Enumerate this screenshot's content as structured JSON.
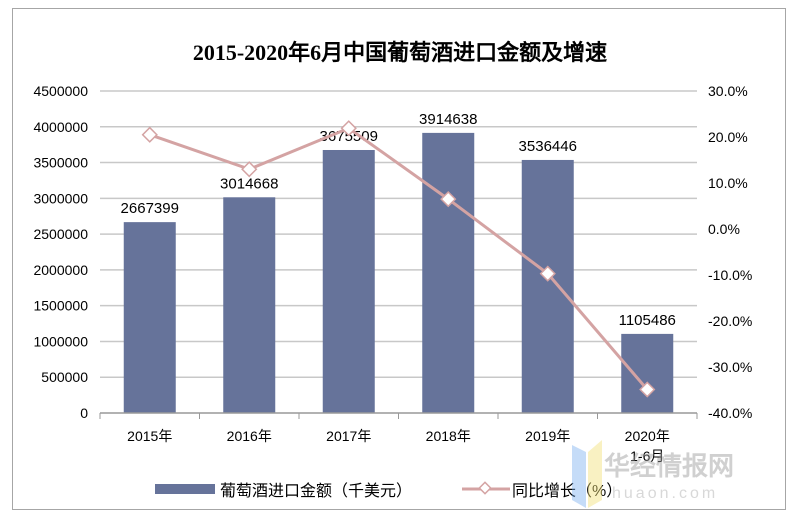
{
  "chart_data": {
    "type": "bar+line",
    "title": "2015-2020年6月中国葡萄酒进口金额及增速",
    "categories": [
      "2015年",
      "2016年",
      "2017年",
      "2018年",
      "2019年",
      "2020年\n1-6月"
    ],
    "category_lines": [
      [
        "2015年"
      ],
      [
        "2016年"
      ],
      [
        "2017年"
      ],
      [
        "2018年"
      ],
      [
        "2019年"
      ],
      [
        "2020年",
        "1-6月"
      ]
    ],
    "series": [
      {
        "name": "葡萄酒进口金额（千美元）",
        "type": "bar",
        "axis": "left",
        "color": "#66739a",
        "values": [
          2667399,
          3014668,
          3675509,
          3914638,
          3536446,
          1105486
        ],
        "labels": [
          "2667399",
          "3014668",
          "3675509",
          "3914638",
          "3536446",
          "1105486"
        ]
      },
      {
        "name": "同比增长（%）",
        "type": "line",
        "axis": "right",
        "color": "#d4a3a3",
        "values": [
          20.5,
          13.0,
          21.9,
          6.5,
          -9.7,
          -34.9
        ]
      }
    ],
    "y_left": {
      "min": 0,
      "max": 4500000,
      "ticks": [
        "0",
        "500000",
        "1000000",
        "1500000",
        "2000000",
        "2500000",
        "3000000",
        "3500000",
        "4000000",
        "4500000"
      ]
    },
    "y_right": {
      "min": -40,
      "max": 30,
      "ticks": [
        "-40.0%",
        "-30.0%",
        "-20.0%",
        "-10.0%",
        "0.0%",
        "10.0%",
        "20.0%",
        "30.0%"
      ]
    },
    "grid": true,
    "legend_position": "bottom"
  },
  "watermark": {
    "text": "华经情报网",
    "subtext": "huaon.com"
  }
}
